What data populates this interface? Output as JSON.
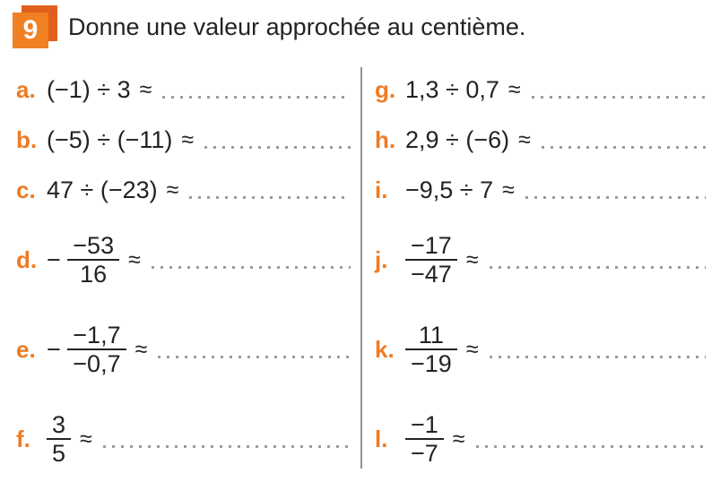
{
  "header": {
    "badge_number": "9",
    "title": "Donne une valeur approchée au centième."
  },
  "approx_symbol": "≈",
  "colors": {
    "label_orange": "#ee7b23",
    "badge_front": "#ef8023",
    "badge_back": "#e15f1d",
    "text": "#232323",
    "dots": "#9b9b9b",
    "divider": "#8e9396"
  },
  "columns": [
    {
      "problems": [
        {
          "label": "a.",
          "type": "inline",
          "expr": "(−1) ÷ 3"
        },
        {
          "label": "b.",
          "type": "inline",
          "expr": "(−5) ÷ (−11)"
        },
        {
          "label": "c.",
          "type": "inline",
          "expr": "47 ÷ (−23)"
        },
        {
          "label": "d.",
          "type": "fraction",
          "prefix": "− ",
          "num": "−53",
          "den": "16"
        },
        {
          "label": "e.",
          "type": "fraction",
          "prefix": "− ",
          "num": "−1,7",
          "den": "−0,7"
        },
        {
          "label": "f.",
          "type": "fraction",
          "prefix": "",
          "num": "3",
          "den": "5"
        }
      ]
    },
    {
      "problems": [
        {
          "label": "g.",
          "type": "inline",
          "expr": "1,3 ÷ 0,7"
        },
        {
          "label": "h.",
          "type": "inline",
          "expr": "2,9 ÷ (−6)"
        },
        {
          "label": "i.",
          "type": "inline",
          "expr": "−9,5 ÷ 7"
        },
        {
          "label": "j.",
          "type": "fraction",
          "prefix": "",
          "num": "−17",
          "den": "−47"
        },
        {
          "label": "k.",
          "type": "fraction",
          "prefix": "",
          "num": "11",
          "den": "−19"
        },
        {
          "label": "l.",
          "type": "fraction",
          "prefix": "",
          "num": "−1",
          "den": "−7"
        }
      ]
    }
  ]
}
